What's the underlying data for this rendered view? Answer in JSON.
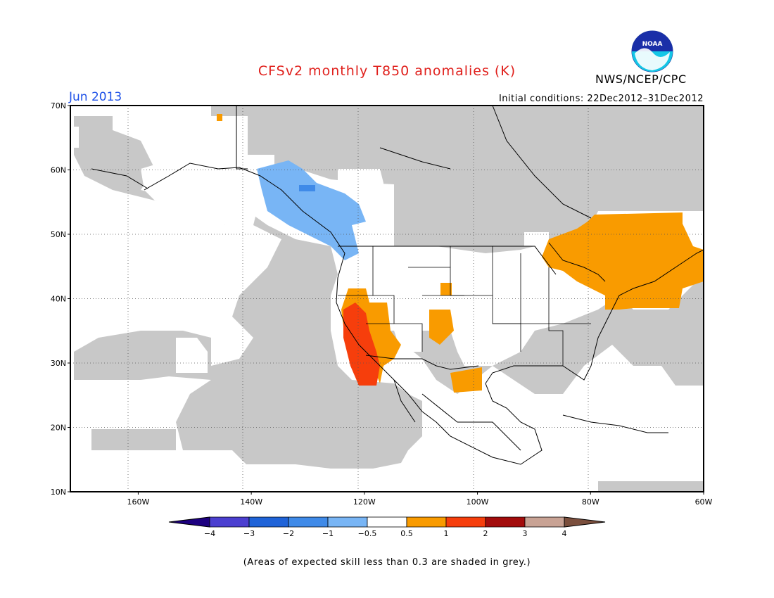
{
  "title": "CFSv2 monthly T850 anomalies (K)",
  "valid_month": "Jun 2013",
  "initial_conditions": "Initial conditions: 22Dec2012–31Dec2012",
  "agency": "NWS/NCEP/CPC",
  "logo_text": "NOAA",
  "footnote": "(Areas of expected skill less than 0.3 are shaded in grey.)",
  "map": {
    "lon_range": [
      -172,
      -60
    ],
    "lat_range": [
      10,
      70
    ],
    "lat_labels": [
      "70N",
      "60N",
      "50N",
      "40N",
      "30N",
      "20N",
      "10N"
    ],
    "lat_values": [
      70,
      60,
      50,
      40,
      30,
      20,
      10
    ],
    "lon_labels": [
      "160W",
      "140W",
      "120W",
      "100W",
      "80W",
      "60W"
    ],
    "lon_values": [
      -160,
      -140,
      -120,
      -100,
      -80,
      -60
    ]
  },
  "colorbar": {
    "colors": [
      "#1d0080",
      "#4b3fd0",
      "#1f63d8",
      "#3f8ae8",
      "#78b5f5",
      "#ffffff",
      "#f99b00",
      "#f63e0c",
      "#a30c0c",
      "#c8a294",
      "#7b4f3d"
    ],
    "labels": [
      "−4",
      "−3",
      "−2",
      "−1",
      "−0.5",
      "0.5",
      "1",
      "2",
      "3",
      "4"
    ]
  },
  "colors": {
    "grey": "#c8c8c8",
    "cold": "#78b5f5",
    "cold_dark": "#3f8ae8",
    "warm": "#f99b00",
    "hot": "#f63e0c"
  }
}
